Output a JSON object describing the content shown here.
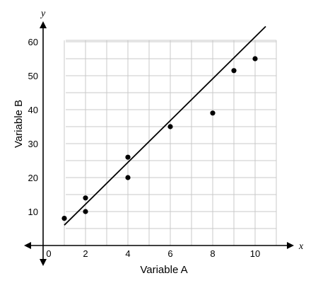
{
  "chart_data": {
    "type": "scatter",
    "title": "",
    "xlabel": "Variable A",
    "ylabel": "Variable B",
    "x_axis_letter": "x",
    "y_axis_letter": "y",
    "xlim": [
      -1,
      11
    ],
    "ylim": [
      0,
      65
    ],
    "x_ticks": [
      0,
      2,
      4,
      6,
      8,
      10
    ],
    "y_ticks": [
      10,
      20,
      30,
      40,
      50,
      60
    ],
    "grid": true,
    "x_grid_step": 1,
    "y_grid_step": 5,
    "points": [
      {
        "x": 1,
        "y": 8
      },
      {
        "x": 2,
        "y": 14
      },
      {
        "x": 2,
        "y": 10
      },
      {
        "x": 4,
        "y": 26
      },
      {
        "x": 4,
        "y": 20
      },
      {
        "x": 6,
        "y": 35
      },
      {
        "x": 8,
        "y": 39
      },
      {
        "x": 9,
        "y": 51.5
      },
      {
        "x": 10,
        "y": 55
      }
    ],
    "trend_line": {
      "x1": 1,
      "y1": 6,
      "x2": 10.5,
      "y2": 64.5
    },
    "colors": {
      "points": "#000000",
      "line": "#000000",
      "grid": "#c8c8c8",
      "background": "#ffffff"
    }
  }
}
